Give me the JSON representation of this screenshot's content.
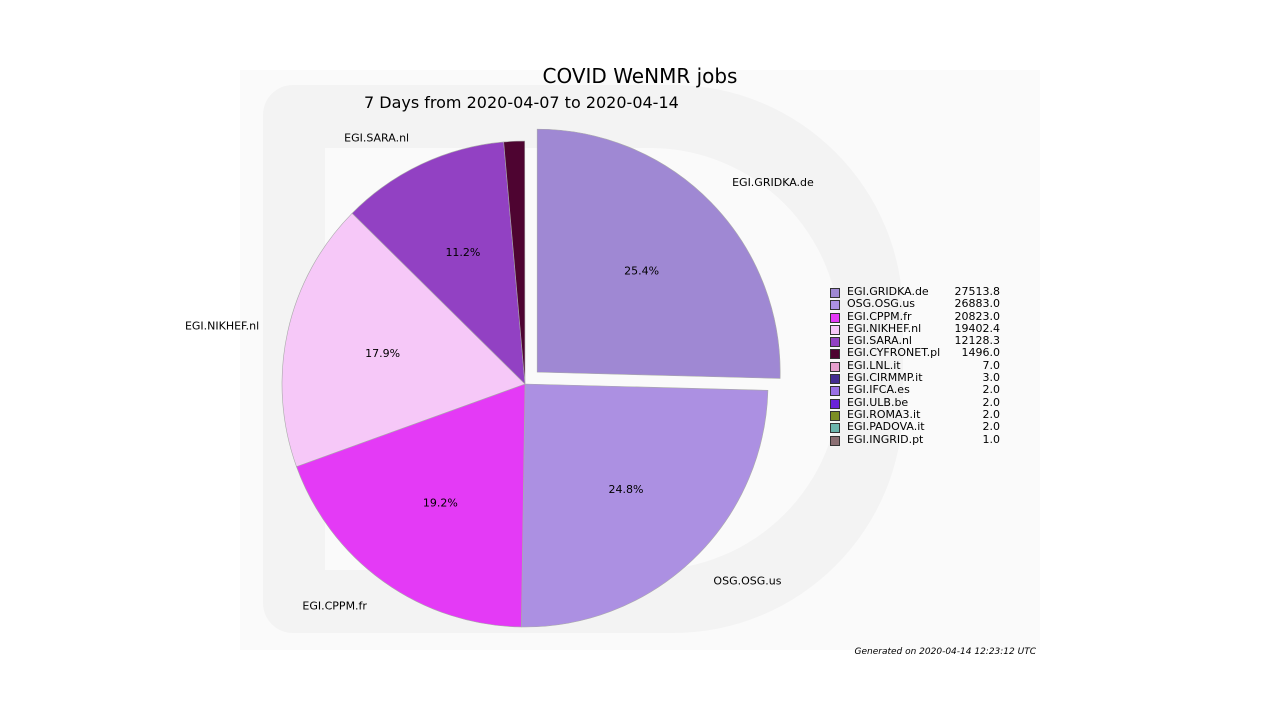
{
  "chart_data": {
    "type": "pie",
    "title": "COVID WeNMR jobs",
    "subtitle": "7 Days from 2020-04-07 to 2020-04-14",
    "slices": [
      {
        "label": "EGI.GRIDKA.de",
        "value": 27513.8,
        "pct_label": "25.4%",
        "color": "#9f88d3",
        "explode": true,
        "show_label": true
      },
      {
        "label": "OSG.OSG.us",
        "value": 26883.0,
        "pct_label": "24.8%",
        "color": "#ac90e2",
        "explode": false,
        "show_label": true
      },
      {
        "label": "EGI.CPPM.fr",
        "value": 20823.0,
        "pct_label": "19.2%",
        "color": "#e43af6",
        "explode": false,
        "show_label": true
      },
      {
        "label": "EGI.NIKHEF.nl",
        "value": 19402.4,
        "pct_label": "17.9%",
        "color": "#f6c8f8",
        "explode": false,
        "show_label": true
      },
      {
        "label": "EGI.SARA.nl",
        "value": 12128.3,
        "pct_label": "11.2%",
        "color": "#9241c3",
        "explode": false,
        "show_label": true
      },
      {
        "label": "EGI.CYFRONET.pl",
        "value": 1496.0,
        "pct_label": "",
        "color": "#4e0431",
        "explode": false,
        "show_label": false
      },
      {
        "label": "EGI.LNL.it",
        "value": 7.0,
        "pct_label": "",
        "color": "#e79fce",
        "explode": false,
        "show_label": false
      },
      {
        "label": "EGI.CIRMMP.it",
        "value": 3.0,
        "pct_label": "",
        "color": "#442c91",
        "explode": false,
        "show_label": false
      },
      {
        "label": "EGI.IFCA.es",
        "value": 2.0,
        "pct_label": "",
        "color": "#9a70e4",
        "explode": false,
        "show_label": false
      },
      {
        "label": "EGI.ULB.be",
        "value": 2.0,
        "pct_label": "",
        "color": "#6a23d9",
        "explode": false,
        "show_label": false
      },
      {
        "label": "EGI.ROMA3.it",
        "value": 2.0,
        "pct_label": "",
        "color": "#7c8f25",
        "explode": false,
        "show_label": false
      },
      {
        "label": "EGI.PADOVA.it",
        "value": 2.0,
        "pct_label": "",
        "color": "#6cb5ad",
        "explode": false,
        "show_label": false
      },
      {
        "label": "EGI.INGRID.pt",
        "value": 1.0,
        "pct_label": "",
        "color": "#8b6f73",
        "explode": false,
        "show_label": false
      }
    ],
    "legend": [
      {
        "name": "EGI.GRIDKA.de",
        "value": "27513.8"
      },
      {
        "name": "OSG.OSG.us",
        "value": "26883.0"
      },
      {
        "name": "EGI.CPPM.fr",
        "value": "20823.0"
      },
      {
        "name": "EGI.NIKHEF.nl",
        "value": "19402.4"
      },
      {
        "name": "EGI.SARA.nl",
        "value": "12128.3"
      },
      {
        "name": "EGI.CYFRONET.pl",
        "value": "1496.0"
      },
      {
        "name": "EGI.LNL.it",
        "value": "7.0"
      },
      {
        "name": "EGI.CIRMMP.it",
        "value": "3.0"
      },
      {
        "name": "EGI.IFCA.es",
        "value": "2.0"
      },
      {
        "name": "EGI.ULB.be",
        "value": "2.0"
      },
      {
        "name": "EGI.ROMA3.it",
        "value": "2.0"
      },
      {
        "name": "EGI.PADOVA.it",
        "value": "2.0"
      },
      {
        "name": "EGI.INGRID.pt",
        "value": "1.0"
      }
    ],
    "legend_position": "right",
    "start_angle": "top",
    "direction": "clockwise"
  },
  "footer": "Generated on 2020-04-14 12:23:12 UTC"
}
